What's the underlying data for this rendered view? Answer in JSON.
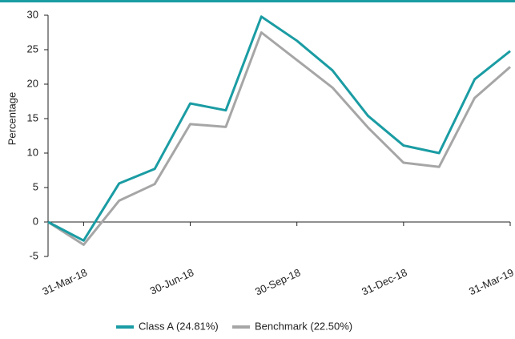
{
  "chart_data": {
    "type": "line",
    "y_label": "Percentage",
    "categories": [
      null,
      "31-Mar-18",
      null,
      null,
      "30-Jun-18",
      null,
      null,
      "30-Sep-18",
      null,
      null,
      "31-Dec-18",
      null,
      null,
      "31-Mar-19"
    ],
    "series": [
      {
        "name": "Class A (24.81%)",
        "color": "#1a9ca3",
        "values": [
          0,
          -2.7,
          5.6,
          7.7,
          17.2,
          16.2,
          29.8,
          26.3,
          22.0,
          15.4,
          11.1,
          10.0,
          20.7,
          24.8
        ]
      },
      {
        "name": "Benchmark (22.50%)",
        "color": "#a6a6a6",
        "values": [
          0,
          -3.3,
          3.1,
          5.5,
          14.2,
          13.8,
          27.5,
          23.5,
          19.5,
          13.7,
          8.6,
          8.0,
          18.0,
          22.5
        ]
      }
    ],
    "ylim": [
      -5,
      30
    ],
    "yticks": [
      -5,
      0,
      5,
      10,
      15,
      20,
      25,
      30
    ]
  }
}
